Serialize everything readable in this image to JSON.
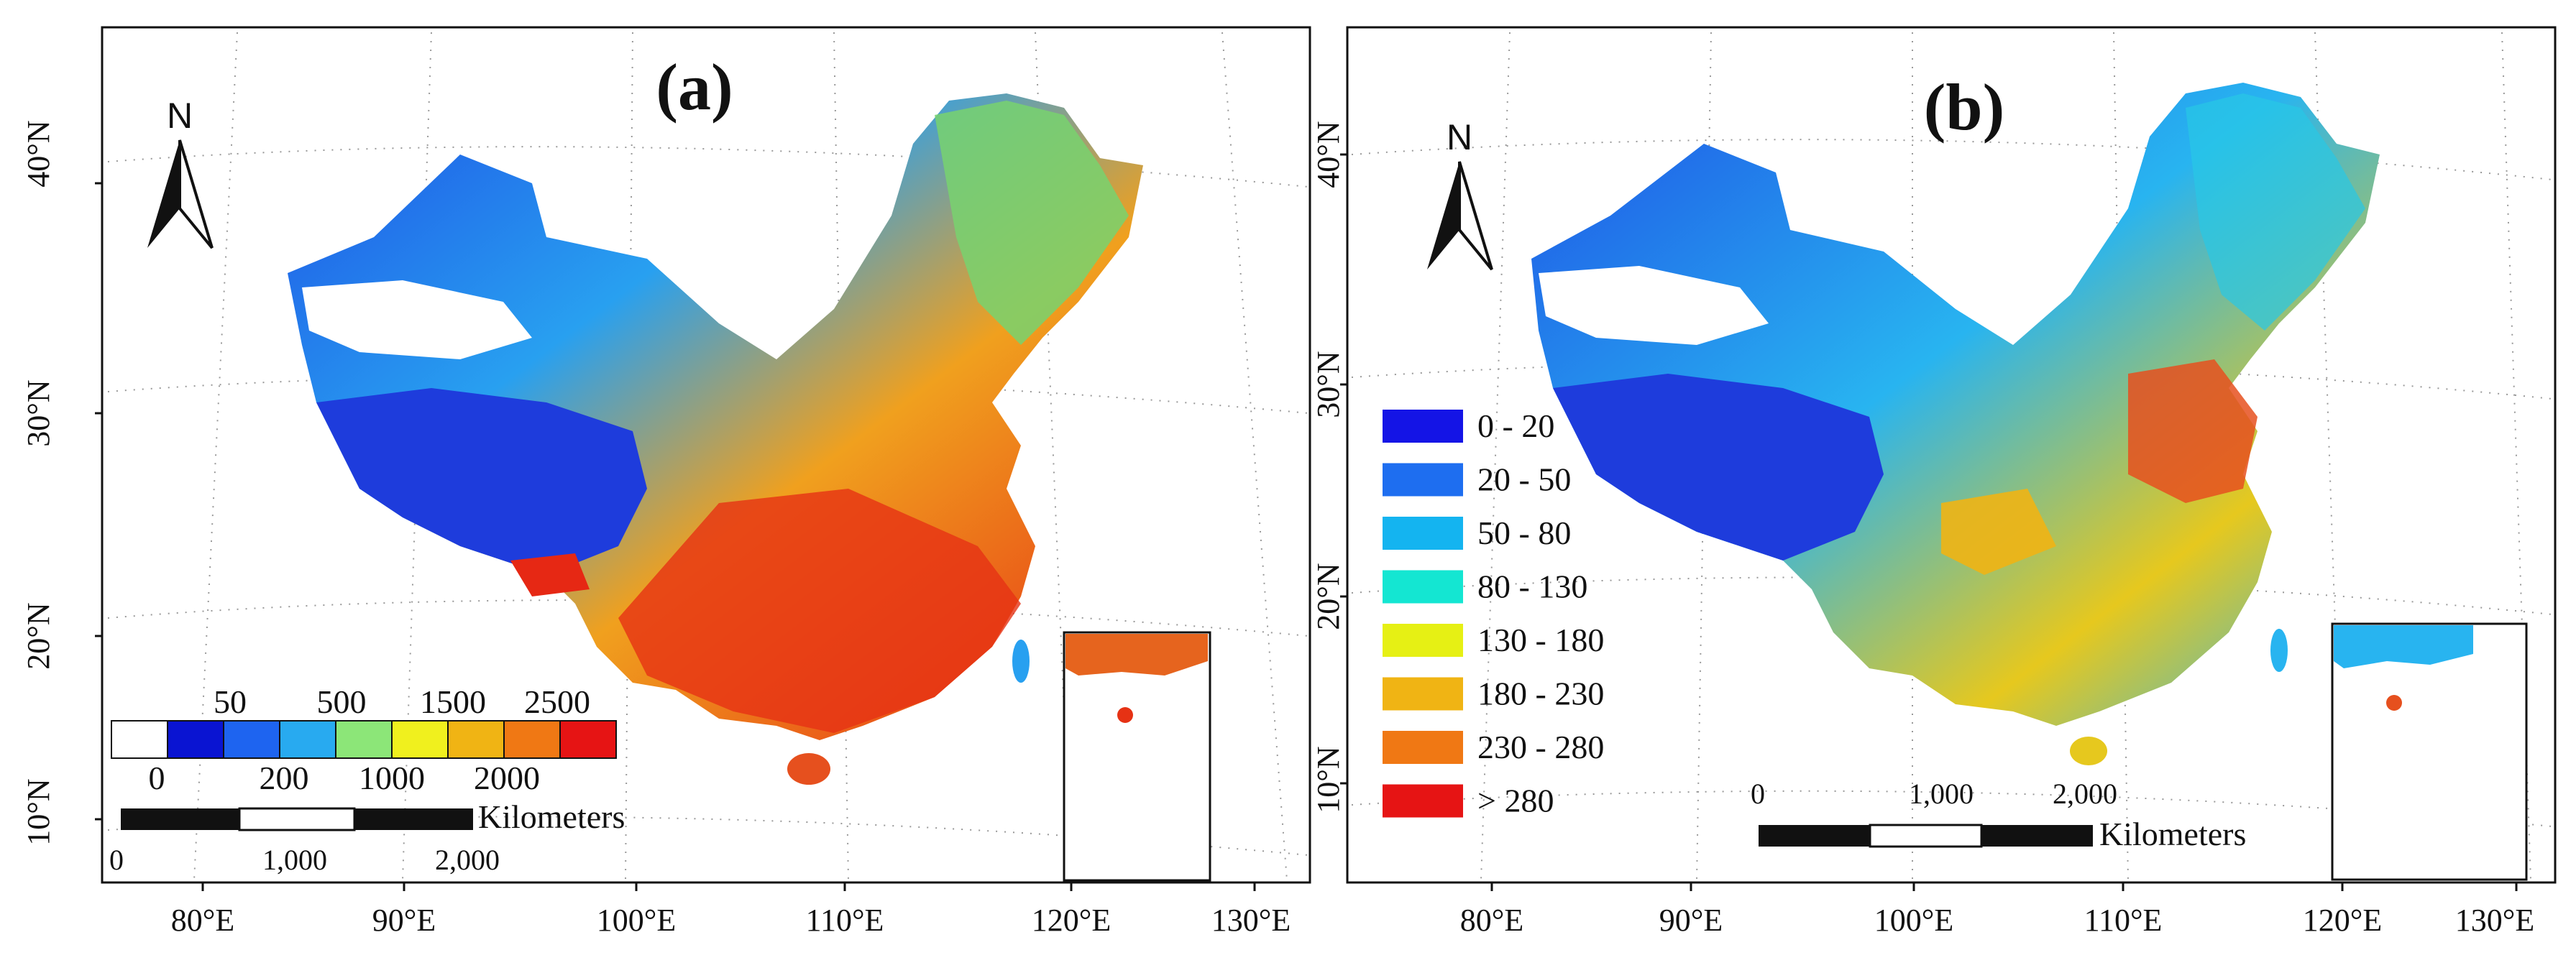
{
  "panel_a": {
    "title": "(a)",
    "north_label": "N",
    "lat_ticks": [
      "40°N",
      "30°N",
      "20°N",
      "10°N"
    ],
    "lon_ticks": [
      "80°E",
      "90°E",
      "100°E",
      "110°E",
      "120°E",
      "130°E"
    ],
    "legend": {
      "top_labels": [
        "50",
        "500",
        "1500",
        "2500"
      ],
      "bottom_labels": [
        "0",
        "200",
        "1000",
        "2000"
      ],
      "colors": [
        "#ffffff",
        "#0a14d2",
        "#1e64f0",
        "#28aaf0",
        "#8ce678",
        "#f0f01e",
        "#f0b414",
        "#f07814",
        "#e61414"
      ]
    },
    "scale_bar": {
      "unit": "Kilometers",
      "labels": [
        "0",
        "1,000",
        "2,000"
      ]
    }
  },
  "panel_b": {
    "title": "(b)",
    "north_label": "N",
    "lat_ticks": [
      "40°N",
      "30°N",
      "20°N",
      "10°N"
    ],
    "lon_ticks": [
      "80°E",
      "90°E",
      "100°E",
      "110°E",
      "120°E",
      "130°E"
    ],
    "legend": {
      "items": [
        {
          "label": "0 - 20",
          "color": "#1414e6"
        },
        {
          "label": "20 - 50",
          "color": "#1e6ef0"
        },
        {
          "label": "50 - 80",
          "color": "#14b4f0"
        },
        {
          "label": "80 - 130",
          "color": "#14e6d2"
        },
        {
          "label": "130 - 180",
          "color": "#e6f014"
        },
        {
          "label": "180 - 230",
          "color": "#f0b414"
        },
        {
          "label": "230 - 280",
          "color": "#f07814"
        },
        {
          "label": "> 280",
          "color": "#e61414"
        }
      ]
    },
    "scale_bar": {
      "unit": "Kilometers",
      "labels": [
        "0",
        "1,000",
        "2,000"
      ]
    }
  }
}
